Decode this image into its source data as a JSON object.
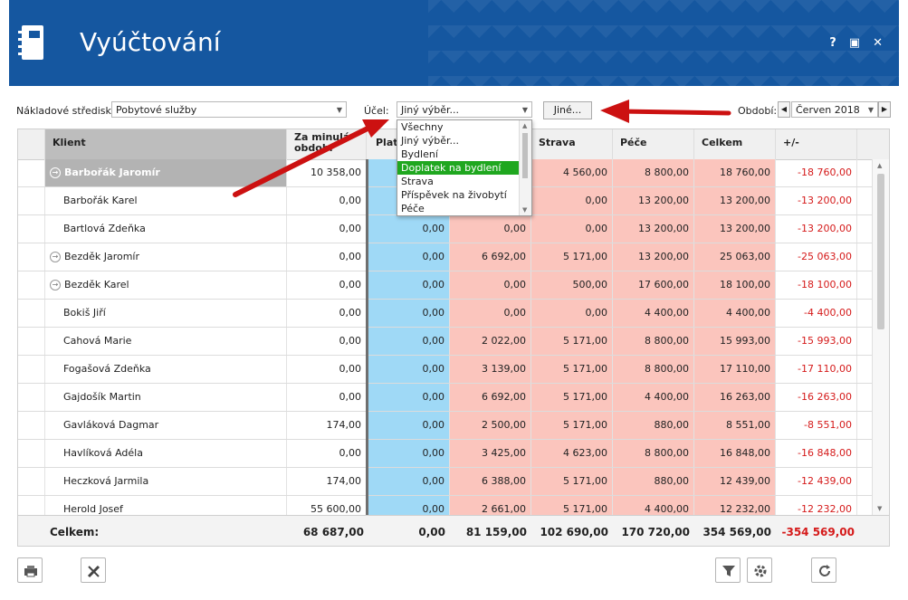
{
  "app": {
    "title": "Vyúčtování",
    "help": "?",
    "maximize": "▣",
    "close": "✕"
  },
  "filters": {
    "cost_center_label": "Nákladové středisko:",
    "cost_center_value": "Pobytové služby",
    "purpose_label": "Účel:",
    "purpose_value": "Jiný výběr...",
    "other_button": "Jiné...",
    "period_label": "Období:",
    "period_value": "Červen 2018"
  },
  "dropdown": {
    "items": [
      "Všechny",
      "Jiný výběr...",
      "Bydlení",
      "Doplatek na bydlení",
      "Strava",
      "Příspěvek na živobytí",
      "Péče"
    ],
    "selected_index": 3
  },
  "table": {
    "headers": {
      "client": "Klient",
      "prev": "Za minulá období",
      "plat": "Platby",
      "c4": "",
      "strava": "Strava",
      "pece": "Péče",
      "celkem": "Celkem",
      "diff": "+/-"
    },
    "rows": [
      {
        "name": "Barbořák Jaromír",
        "expand": true,
        "highlight": true,
        "prev": "10 358,00",
        "plat": "",
        "c4": "",
        "strava": "4 560,00",
        "pece": "8 800,00",
        "celkem": "18 760,00",
        "diff": "-18 760,00"
      },
      {
        "name": "Barbořák Karel",
        "expand": false,
        "highlight": false,
        "prev": "0,00",
        "plat": "",
        "c4": "",
        "strava": "0,00",
        "pece": "13 200,00",
        "celkem": "13 200,00",
        "diff": "-13 200,00"
      },
      {
        "name": "Bartlová Zdeňka",
        "expand": false,
        "highlight": false,
        "prev": "0,00",
        "plat": "0,00",
        "c4": "0,00",
        "strava": "0,00",
        "pece": "13 200,00",
        "celkem": "13 200,00",
        "diff": "-13 200,00"
      },
      {
        "name": "Bezděk Jaromír",
        "expand": true,
        "highlight": false,
        "prev": "0,00",
        "plat": "0,00",
        "c4": "6 692,00",
        "strava": "5 171,00",
        "pece": "13 200,00",
        "celkem": "25 063,00",
        "diff": "-25 063,00"
      },
      {
        "name": "Bezděk Karel",
        "expand": true,
        "highlight": false,
        "prev": "0,00",
        "plat": "0,00",
        "c4": "0,00",
        "strava": "500,00",
        "pece": "17 600,00",
        "celkem": "18 100,00",
        "diff": "-18 100,00"
      },
      {
        "name": "Bokiš Jiří",
        "expand": false,
        "highlight": false,
        "prev": "0,00",
        "plat": "0,00",
        "c4": "0,00",
        "strava": "0,00",
        "pece": "4 400,00",
        "celkem": "4 400,00",
        "diff": "-4 400,00"
      },
      {
        "name": "Cahová Marie",
        "expand": false,
        "highlight": false,
        "prev": "0,00",
        "plat": "0,00",
        "c4": "2 022,00",
        "strava": "5 171,00",
        "pece": "8 800,00",
        "celkem": "15 993,00",
        "diff": "-15 993,00"
      },
      {
        "name": "Fogašová Zdeňka",
        "expand": false,
        "highlight": false,
        "prev": "0,00",
        "plat": "0,00",
        "c4": "3 139,00",
        "strava": "5 171,00",
        "pece": "8 800,00",
        "celkem": "17 110,00",
        "diff": "-17 110,00"
      },
      {
        "name": "Gajdošík Martin",
        "expand": false,
        "highlight": false,
        "prev": "0,00",
        "plat": "0,00",
        "c4": "6 692,00",
        "strava": "5 171,00",
        "pece": "4 400,00",
        "celkem": "16 263,00",
        "diff": "-16 263,00"
      },
      {
        "name": "Gavláková Dagmar",
        "expand": false,
        "highlight": false,
        "prev": "174,00",
        "plat": "0,00",
        "c4": "2 500,00",
        "strava": "5 171,00",
        "pece": "880,00",
        "celkem": "8 551,00",
        "diff": "-8 551,00"
      },
      {
        "name": "Havlíková Adéla",
        "expand": false,
        "highlight": false,
        "prev": "0,00",
        "plat": "0,00",
        "c4": "3 425,00",
        "strava": "4 623,00",
        "pece": "8 800,00",
        "celkem": "16 848,00",
        "diff": "-16 848,00"
      },
      {
        "name": "Heczková Jarmila",
        "expand": false,
        "highlight": false,
        "prev": "174,00",
        "plat": "0,00",
        "c4": "6 388,00",
        "strava": "5 171,00",
        "pece": "880,00",
        "celkem": "12 439,00",
        "diff": "-12 439,00"
      },
      {
        "name": "Herold Josef",
        "expand": false,
        "highlight": false,
        "prev": "55 600,00",
        "plat": "0,00",
        "c4": "2 661,00",
        "strava": "5 171,00",
        "pece": "4 400,00",
        "celkem": "12 232,00",
        "diff": "-12 232,00"
      }
    ],
    "totals": {
      "label": "Celkem:",
      "prev": "68 687,00",
      "plat": "0,00",
      "c4": "81 159,00",
      "strava": "102 690,00",
      "pece": "170 720,00",
      "celkem": "354 569,00",
      "diff": "-354 569,00"
    }
  },
  "colors": {
    "header_bg": "#1557a0",
    "payment_col": "#9fd9f6",
    "cost_col": "#fbc5bd",
    "negative": "#d51a1a",
    "selected": "#1fa71f",
    "arrow": "#cc1111"
  },
  "toolbar": {
    "icons": [
      "print-icon",
      "tools-icon",
      "filter-icon",
      "settings-icon",
      "refresh-icon"
    ]
  }
}
